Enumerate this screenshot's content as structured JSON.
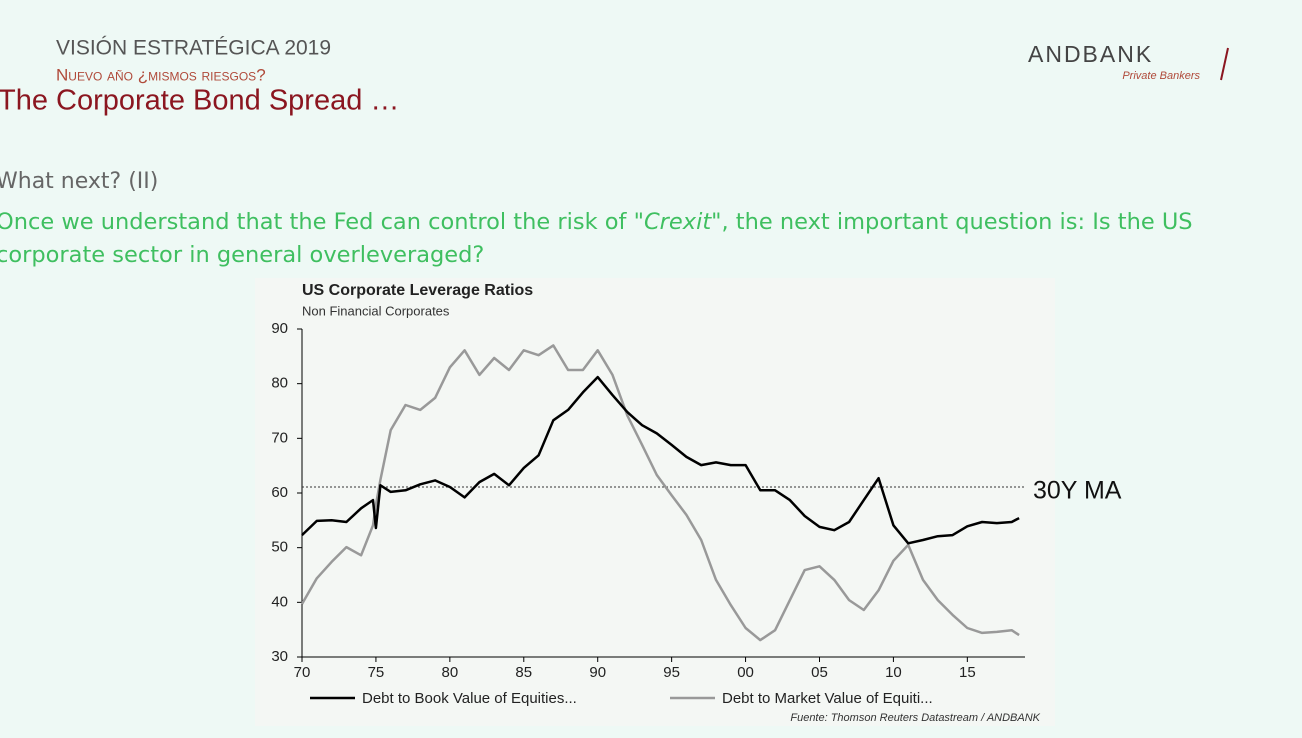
{
  "header": {
    "kicker": "VISIÓN ESTRATÉGICA 2019",
    "subkicker": "Nuevo año ¿mismos riesgos?",
    "title": "The Corporate Bond Spread …",
    "section": "What next? (II)",
    "paragraph": {
      "before": "Once we understand that the Fed can control the risk of ",
      "emphasis": "\"Crexit\"",
      "after": ", the next important question is: Is the US corporate sector in general overleveraged?"
    }
  },
  "logo": {
    "name": "ANDBANK",
    "tagline": "Private Bankers"
  },
  "chart_data": {
    "type": "line",
    "title": "US Corporate Leverage Ratios",
    "subtitle": "Non Financial Corporates",
    "source": "Fuente: Thomson Reuters Datastream / ANDBANK",
    "x": [
      1970,
      1971,
      1972,
      1973,
      1974,
      1974.8,
      1975,
      1975.3,
      1976,
      1977,
      1978,
      1979,
      1980,
      1981,
      1982,
      1983,
      1984,
      1985,
      1986,
      1987,
      1988,
      1989,
      1990,
      1991,
      1992,
      1993,
      1994,
      1995,
      1996,
      1997,
      1998,
      1999,
      2000,
      2001,
      2002,
      2003,
      2004,
      2005,
      2006,
      2007,
      2008,
      2009,
      2010,
      2011,
      2012,
      2013,
      2014,
      2015,
      2016,
      2017,
      2018,
      2018.5
    ],
    "series": [
      {
        "name": "Debt to Book Value of Equities...",
        "color": "#000000",
        "values": [
          52.3,
          54.9,
          55,
          54.7,
          57.2,
          58.7,
          53.6,
          61.4,
          60.2,
          60.5,
          61.6,
          62.3,
          61.1,
          59.2,
          62,
          63.5,
          61.4,
          64.6,
          66.9,
          73.3,
          75.2,
          78.4,
          81.2,
          77.9,
          74.8,
          72.4,
          70.9,
          68.8,
          66.6,
          65.1,
          65.6,
          65.1,
          65.1,
          60.5,
          60.5,
          58.7,
          55.8,
          53.8,
          53.2,
          54.7,
          58.7,
          62.7,
          54.1,
          50.8,
          51.4,
          52.1,
          52.3,
          53.9,
          54.7,
          54.5,
          54.7,
          55.4
        ]
      },
      {
        "name": "Debt to Market Value of Equiti...",
        "color": "#999999",
        "values": [
          39.7,
          44.4,
          47.4,
          50.1,
          48.6,
          54.1,
          57.8,
          62.4,
          71.5,
          76.1,
          75.2,
          77.4,
          83,
          86.1,
          81.6,
          84.7,
          82.5,
          86.1,
          85.2,
          87,
          82.5,
          82.5,
          86.1,
          81.6,
          74.2,
          68.8,
          63.3,
          59.6,
          56,
          51.4,
          44.1,
          39.5,
          35.3,
          33.1,
          34.9,
          40.4,
          45.9,
          46.6,
          44.1,
          40.4,
          38.6,
          42.2,
          47.6,
          50.5,
          44.1,
          40.4,
          37.7,
          35.3,
          34.4,
          34.6,
          34.9,
          34
        ]
      }
    ],
    "reference_line": {
      "label": "30Y MA",
      "value": 61.1
    },
    "xlim": [
      1970,
      2018.9
    ],
    "xticks": [
      {
        "value": 1970,
        "label": "70"
      },
      {
        "value": 1975,
        "label": "75"
      },
      {
        "value": 1980,
        "label": "80"
      },
      {
        "value": 1985,
        "label": "85"
      },
      {
        "value": 1990,
        "label": "90"
      },
      {
        "value": 1995,
        "label": "95"
      },
      {
        "value": 2000,
        "label": "00"
      },
      {
        "value": 2005,
        "label": "05"
      },
      {
        "value": 2010,
        "label": "10"
      },
      {
        "value": 2015,
        "label": "15"
      }
    ],
    "ylim": [
      30,
      90
    ],
    "yticks": [
      30,
      40,
      50,
      60,
      70,
      80,
      90
    ],
    "grid": false
  }
}
